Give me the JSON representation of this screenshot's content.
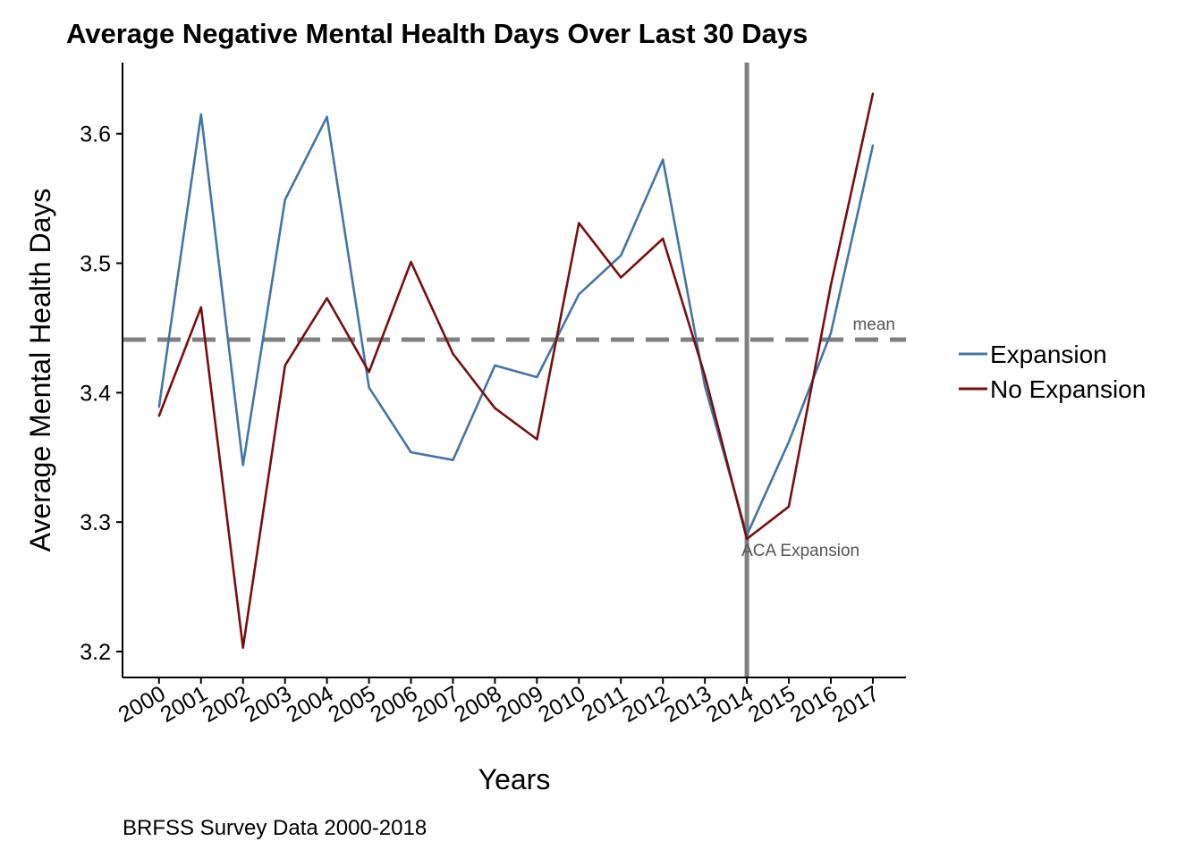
{
  "chart_data": {
    "type": "line",
    "title": "Average Negative Mental Health Days Over Last 30 Days",
    "xlabel": "Years",
    "ylabel": "Average Mental Health Days",
    "caption": "BRFSS Survey Data 2000-2018",
    "categories": [
      "2000",
      "2001",
      "2002",
      "2003",
      "2004",
      "2005",
      "2006",
      "2007",
      "2008",
      "2009",
      "2010",
      "2011",
      "2012",
      "2013",
      "2014",
      "2015",
      "2016",
      "2017"
    ],
    "ylim": [
      3.18,
      3.655
    ],
    "yticks": [
      3.2,
      3.3,
      3.4,
      3.5,
      3.6
    ],
    "ytick_labels": [
      "3.2",
      "3.3",
      "3.4",
      "3.5",
      "3.6"
    ],
    "series": [
      {
        "name": "Expansion",
        "color": "#4375a8",
        "values": [
          3.389,
          3.615,
          3.344,
          3.549,
          3.613,
          3.404,
          3.354,
          3.348,
          3.421,
          3.412,
          3.476,
          3.506,
          3.58,
          3.405,
          3.29,
          3.362,
          3.446,
          3.591
        ]
      },
      {
        "name": "No Expansion",
        "color": "#7a0e0e",
        "values": [
          3.382,
          3.466,
          3.203,
          3.421,
          3.473,
          3.416,
          3.501,
          3.43,
          3.388,
          3.364,
          3.531,
          3.489,
          3.519,
          3.413,
          3.287,
          3.312,
          3.483,
          3.631
        ]
      }
    ],
    "reference_lines": {
      "mean": {
        "value": 3.441,
        "label": "mean",
        "color": "#808080",
        "style": "dashed"
      },
      "aca": {
        "category": "2014",
        "label": "ACA Expansion",
        "color": "#808080",
        "style": "solid"
      }
    },
    "legend_position": "right",
    "grid": false
  }
}
